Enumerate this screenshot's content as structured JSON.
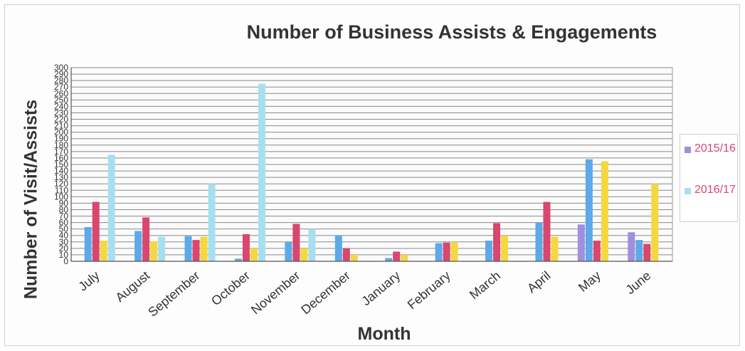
{
  "chart_data": {
    "type": "bar",
    "title": "Number of Business Assists & Engagements",
    "xlabel": "Month",
    "ylabel": "Number of Visit/Assists",
    "ylim": [
      0,
      300
    ],
    "y_tick_step": 10,
    "grid": true,
    "legend_position": "right",
    "categories": [
      "July",
      "August",
      "September",
      "October",
      "November",
      "December",
      "January",
      "February",
      "March",
      "April",
      "May",
      "June"
    ],
    "series": [
      {
        "name": "2015/16",
        "color": "#9f8fdf",
        "values": [
          0,
          0,
          0,
          0,
          0,
          0,
          0,
          0,
          0,
          0,
          57,
          45
        ]
      },
      {
        "name": "",
        "color": "#5ea9e8",
        "values": [
          53,
          47,
          39,
          4,
          30,
          40,
          5,
          28,
          32,
          60,
          158,
          33
        ]
      },
      {
        "name": "",
        "color": "#d9466e",
        "values": [
          92,
          68,
          33,
          42,
          58,
          20,
          15,
          29,
          59,
          92,
          32,
          27
        ]
      },
      {
        "name": "",
        "color": "#f5d742",
        "values": [
          32,
          31,
          38,
          20,
          20,
          10,
          10,
          30,
          40,
          38,
          155,
          120
        ]
      },
      {
        "name": "2016/17",
        "color": "#a8dff0",
        "values": [
          165,
          38,
          120,
          275,
          50,
          0,
          0,
          0,
          0,
          0,
          0,
          0
        ]
      }
    ]
  }
}
